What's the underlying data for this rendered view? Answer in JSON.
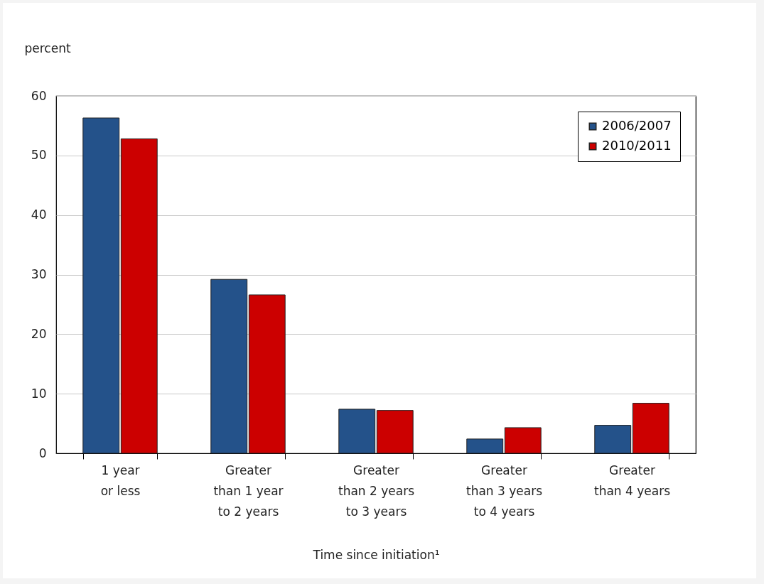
{
  "chart_data": {
    "type": "bar",
    "ylabel": "percent",
    "xlabel": "Time since initiation¹",
    "categories": [
      "1 year or less",
      "Greater than 1 year to 2 years",
      "Greater than 2 years to 3 years",
      "Greater than 3 years to 4 years",
      "Greater than 4 years"
    ],
    "series": [
      {
        "name": "2006/2007",
        "color": "#24528a",
        "values": [
          56.3,
          29.2,
          7.4,
          2.4,
          4.7
        ]
      },
      {
        "name": "2010/2011",
        "color": "#cc0000",
        "values": [
          52.8,
          26.6,
          7.2,
          4.3,
          8.4
        ]
      }
    ],
    "ylim": [
      0,
      60
    ],
    "yticks": [
      0,
      10,
      20,
      30,
      40,
      50,
      60
    ],
    "grid": "y",
    "legend": "top right"
  }
}
